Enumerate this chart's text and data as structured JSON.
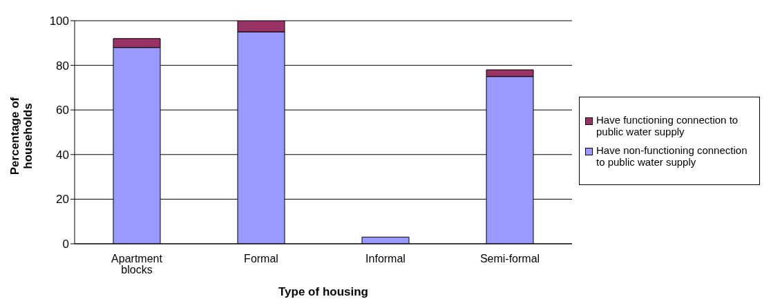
{
  "chart_data": {
    "type": "bar",
    "stacked": true,
    "xlabel": "Type of housing",
    "ylabel": "Percentage of households",
    "categories": [
      "Apartment blocks",
      "Formal",
      "Informal",
      "Semi-formal"
    ],
    "series": [
      {
        "name": "Have non-functioning connection to public water supply",
        "color": "#9999ff",
        "values": [
          88,
          95,
          3,
          75
        ]
      },
      {
        "name": "Have functioning connection to public water supply",
        "color": "#993366",
        "values": [
          4,
          5,
          0,
          3
        ]
      }
    ],
    "ylim": [
      0,
      100
    ],
    "yticks": [
      0,
      20,
      40,
      60,
      80,
      100
    ],
    "grid": "y",
    "legend": "right"
  }
}
